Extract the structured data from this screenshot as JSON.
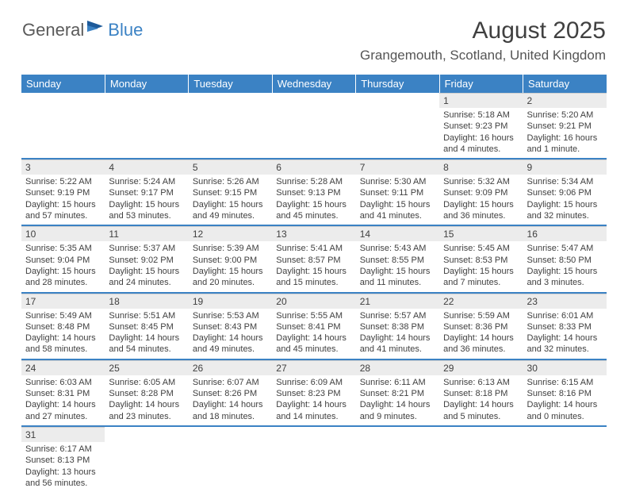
{
  "logo": {
    "text_general": "General",
    "text_blue": "Blue"
  },
  "title": "August 2025",
  "location": "Grangemouth, Scotland, United Kingdom",
  "colors": {
    "header_bg": "#3b82c4",
    "header_text": "#ffffff",
    "daynum_bg": "#ececec",
    "text": "#404040",
    "week_sep": "#3b82c4"
  },
  "dayHeaders": [
    "Sunday",
    "Monday",
    "Tuesday",
    "Wednesday",
    "Thursday",
    "Friday",
    "Saturday"
  ],
  "weeks": [
    [
      {
        "n": "",
        "sr": "",
        "ss": "",
        "dl": ""
      },
      {
        "n": "",
        "sr": "",
        "ss": "",
        "dl": ""
      },
      {
        "n": "",
        "sr": "",
        "ss": "",
        "dl": ""
      },
      {
        "n": "",
        "sr": "",
        "ss": "",
        "dl": ""
      },
      {
        "n": "",
        "sr": "",
        "ss": "",
        "dl": ""
      },
      {
        "n": "1",
        "sr": "Sunrise: 5:18 AM",
        "ss": "Sunset: 9:23 PM",
        "dl": "Daylight: 16 hours and 4 minutes."
      },
      {
        "n": "2",
        "sr": "Sunrise: 5:20 AM",
        "ss": "Sunset: 9:21 PM",
        "dl": "Daylight: 16 hours and 1 minute."
      }
    ],
    [
      {
        "n": "3",
        "sr": "Sunrise: 5:22 AM",
        "ss": "Sunset: 9:19 PM",
        "dl": "Daylight: 15 hours and 57 minutes."
      },
      {
        "n": "4",
        "sr": "Sunrise: 5:24 AM",
        "ss": "Sunset: 9:17 PM",
        "dl": "Daylight: 15 hours and 53 minutes."
      },
      {
        "n": "5",
        "sr": "Sunrise: 5:26 AM",
        "ss": "Sunset: 9:15 PM",
        "dl": "Daylight: 15 hours and 49 minutes."
      },
      {
        "n": "6",
        "sr": "Sunrise: 5:28 AM",
        "ss": "Sunset: 9:13 PM",
        "dl": "Daylight: 15 hours and 45 minutes."
      },
      {
        "n": "7",
        "sr": "Sunrise: 5:30 AM",
        "ss": "Sunset: 9:11 PM",
        "dl": "Daylight: 15 hours and 41 minutes."
      },
      {
        "n": "8",
        "sr": "Sunrise: 5:32 AM",
        "ss": "Sunset: 9:09 PM",
        "dl": "Daylight: 15 hours and 36 minutes."
      },
      {
        "n": "9",
        "sr": "Sunrise: 5:34 AM",
        "ss": "Sunset: 9:06 PM",
        "dl": "Daylight: 15 hours and 32 minutes."
      }
    ],
    [
      {
        "n": "10",
        "sr": "Sunrise: 5:35 AM",
        "ss": "Sunset: 9:04 PM",
        "dl": "Daylight: 15 hours and 28 minutes."
      },
      {
        "n": "11",
        "sr": "Sunrise: 5:37 AM",
        "ss": "Sunset: 9:02 PM",
        "dl": "Daylight: 15 hours and 24 minutes."
      },
      {
        "n": "12",
        "sr": "Sunrise: 5:39 AM",
        "ss": "Sunset: 9:00 PM",
        "dl": "Daylight: 15 hours and 20 minutes."
      },
      {
        "n": "13",
        "sr": "Sunrise: 5:41 AM",
        "ss": "Sunset: 8:57 PM",
        "dl": "Daylight: 15 hours and 15 minutes."
      },
      {
        "n": "14",
        "sr": "Sunrise: 5:43 AM",
        "ss": "Sunset: 8:55 PM",
        "dl": "Daylight: 15 hours and 11 minutes."
      },
      {
        "n": "15",
        "sr": "Sunrise: 5:45 AM",
        "ss": "Sunset: 8:53 PM",
        "dl": "Daylight: 15 hours and 7 minutes."
      },
      {
        "n": "16",
        "sr": "Sunrise: 5:47 AM",
        "ss": "Sunset: 8:50 PM",
        "dl": "Daylight: 15 hours and 3 minutes."
      }
    ],
    [
      {
        "n": "17",
        "sr": "Sunrise: 5:49 AM",
        "ss": "Sunset: 8:48 PM",
        "dl": "Daylight: 14 hours and 58 minutes."
      },
      {
        "n": "18",
        "sr": "Sunrise: 5:51 AM",
        "ss": "Sunset: 8:45 PM",
        "dl": "Daylight: 14 hours and 54 minutes."
      },
      {
        "n": "19",
        "sr": "Sunrise: 5:53 AM",
        "ss": "Sunset: 8:43 PM",
        "dl": "Daylight: 14 hours and 49 minutes."
      },
      {
        "n": "20",
        "sr": "Sunrise: 5:55 AM",
        "ss": "Sunset: 8:41 PM",
        "dl": "Daylight: 14 hours and 45 minutes."
      },
      {
        "n": "21",
        "sr": "Sunrise: 5:57 AM",
        "ss": "Sunset: 8:38 PM",
        "dl": "Daylight: 14 hours and 41 minutes."
      },
      {
        "n": "22",
        "sr": "Sunrise: 5:59 AM",
        "ss": "Sunset: 8:36 PM",
        "dl": "Daylight: 14 hours and 36 minutes."
      },
      {
        "n": "23",
        "sr": "Sunrise: 6:01 AM",
        "ss": "Sunset: 8:33 PM",
        "dl": "Daylight: 14 hours and 32 minutes."
      }
    ],
    [
      {
        "n": "24",
        "sr": "Sunrise: 6:03 AM",
        "ss": "Sunset: 8:31 PM",
        "dl": "Daylight: 14 hours and 27 minutes."
      },
      {
        "n": "25",
        "sr": "Sunrise: 6:05 AM",
        "ss": "Sunset: 8:28 PM",
        "dl": "Daylight: 14 hours and 23 minutes."
      },
      {
        "n": "26",
        "sr": "Sunrise: 6:07 AM",
        "ss": "Sunset: 8:26 PM",
        "dl": "Daylight: 14 hours and 18 minutes."
      },
      {
        "n": "27",
        "sr": "Sunrise: 6:09 AM",
        "ss": "Sunset: 8:23 PM",
        "dl": "Daylight: 14 hours and 14 minutes."
      },
      {
        "n": "28",
        "sr": "Sunrise: 6:11 AM",
        "ss": "Sunset: 8:21 PM",
        "dl": "Daylight: 14 hours and 9 minutes."
      },
      {
        "n": "29",
        "sr": "Sunrise: 6:13 AM",
        "ss": "Sunset: 8:18 PM",
        "dl": "Daylight: 14 hours and 5 minutes."
      },
      {
        "n": "30",
        "sr": "Sunrise: 6:15 AM",
        "ss": "Sunset: 8:16 PM",
        "dl": "Daylight: 14 hours and 0 minutes."
      }
    ],
    [
      {
        "n": "31",
        "sr": "Sunrise: 6:17 AM",
        "ss": "Sunset: 8:13 PM",
        "dl": "Daylight: 13 hours and 56 minutes."
      },
      {
        "n": "",
        "sr": "",
        "ss": "",
        "dl": ""
      },
      {
        "n": "",
        "sr": "",
        "ss": "",
        "dl": ""
      },
      {
        "n": "",
        "sr": "",
        "ss": "",
        "dl": ""
      },
      {
        "n": "",
        "sr": "",
        "ss": "",
        "dl": ""
      },
      {
        "n": "",
        "sr": "",
        "ss": "",
        "dl": ""
      },
      {
        "n": "",
        "sr": "",
        "ss": "",
        "dl": ""
      }
    ]
  ]
}
